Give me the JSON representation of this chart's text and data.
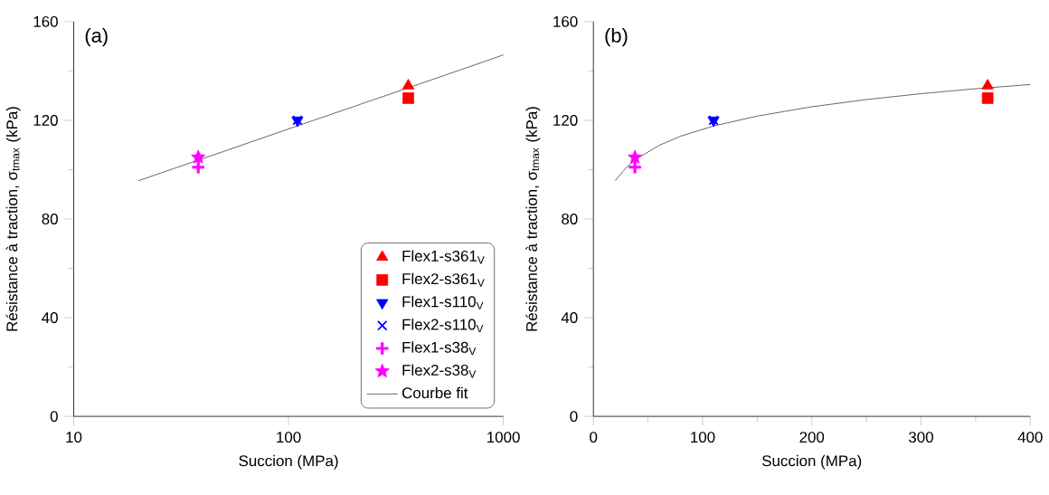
{
  "chart_data": [
    {
      "type": "scatter",
      "title": "(a)",
      "xlabel": "Succion (MPa)",
      "ylabel": "Résistance à traction, σ$_{tmax}$ (kPa)",
      "log": "x",
      "xlim": [
        10,
        1000
      ],
      "xticks": [
        10,
        100,
        1000
      ],
      "ylim": [
        0,
        160
      ],
      "yticks": [
        0,
        40,
        80,
        120,
        160
      ],
      "legend": "bottom right",
      "series": [
        {
          "name": "Flex1-s361$_{V}$",
          "color": "#ff0000",
          "marker": "triangle",
          "x": [
            361
          ],
          "values": [
            134
          ]
        },
        {
          "name": "Flex2-s361$_{V}$",
          "color": "#ff0000",
          "marker": "square",
          "x": [
            361
          ],
          "values": [
            129
          ]
        },
        {
          "name": "Flex1-s110$_{V}$",
          "color": "#0000ff",
          "marker": "triangle_down",
          "x": [
            110
          ],
          "values": [
            120
          ]
        },
        {
          "name": "Flex2-s110$_{V}$",
          "color": "#0000ff",
          "marker": "cross",
          "x": [
            110
          ],
          "values": [
            120
          ]
        },
        {
          "name": "Flex1-s38$_{V}$",
          "color": "#ff00ff",
          "marker": "plus",
          "x": [
            38
          ],
          "values": [
            101
          ]
        },
        {
          "name": "Flex2-s38$_{V}$",
          "color": "#ff00ff",
          "marker": "star",
          "x": [
            38
          ],
          "values": [
            105
          ]
        },
        {
          "name": "Courbe fit",
          "type": "line",
          "color": "#404040",
          "marker": "none",
          "line_style": "solid",
          "x": [
            20,
            30,
            50,
            100,
            200,
            400,
            700,
            1000
          ],
          "values": [
            95.5,
            100.8,
            107.4,
            116.5,
            125.5,
            134.5,
            141.8,
            146.5
          ]
        }
      ]
    },
    {
      "type": "scatter",
      "title": "(b)",
      "xlabel": "Succion (MPa)",
      "ylabel": "Résistance à traction, σ$_{tmax}$ (kPa)",
      "xlim": [
        0,
        400
      ],
      "xticks": [
        0,
        100,
        200,
        300,
        400
      ],
      "ylim": [
        0,
        160
      ],
      "yticks": [
        0,
        40,
        80,
        120,
        160
      ],
      "series": [
        {
          "color": "#ff0000",
          "marker": "triangle",
          "x": [
            361
          ],
          "values": [
            134
          ]
        },
        {
          "color": "#ff0000",
          "marker": "square",
          "x": [
            361
          ],
          "values": [
            129
          ]
        },
        {
          "color": "#0000ff",
          "marker": "cross",
          "x": [
            110
          ],
          "values": [
            120
          ]
        },
        {
          "color": "#0000ff",
          "marker": "triangle_down",
          "x": [
            110
          ],
          "values": [
            120
          ]
        },
        {
          "color": "#ff00ff",
          "marker": "plus",
          "x": [
            38
          ],
          "values": [
            101
          ]
        },
        {
          "color": "#ff00ff",
          "marker": "star",
          "x": [
            38
          ],
          "values": [
            105
          ]
        },
        {
          "type": "line",
          "color": "#404040",
          "marker": "none",
          "line_style": "solid",
          "x": [
            20,
            30,
            40,
            60,
            80,
            110,
            150,
            200,
            250,
            300,
            350,
            400
          ],
          "values": [
            95.5,
            100.8,
            104.5,
            109.8,
            113.6,
            117.7,
            121.7,
            125.5,
            128.4,
            130.8,
            132.8,
            134.5
          ]
        }
      ]
    }
  ]
}
